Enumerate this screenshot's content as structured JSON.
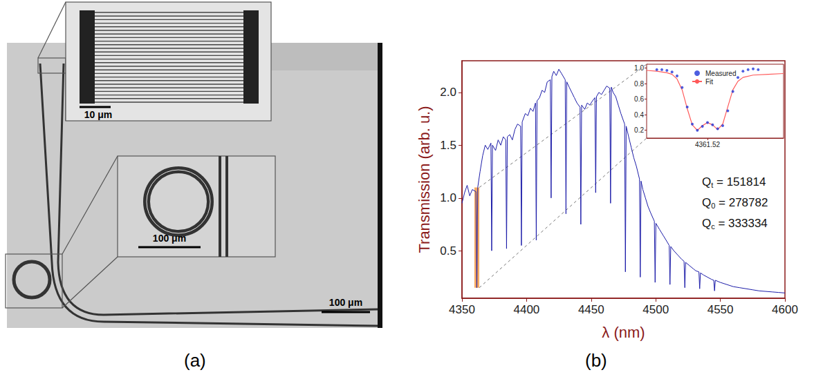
{
  "figure": {
    "panels": [
      {
        "label": "(a)",
        "scale_bars": [
          "10 μm",
          "100 μm",
          "100 μm"
        ]
      },
      {
        "label": "(b)"
      }
    ]
  },
  "chart_data": [
    {
      "type": "line",
      "xlabel": "λ (nm)",
      "ylabel": "Transmission (arb. u.)",
      "x": [
        4350,
        4352,
        4354,
        4356,
        4358,
        4360.8,
        4361.5,
        4362.2,
        4364,
        4366,
        4368,
        4370,
        4372.4,
        4373,
        4373.6,
        4376,
        4378,
        4380,
        4382,
        4383.9,
        4384.5,
        4385.1,
        4387,
        4389,
        4391,
        4393,
        4395.4,
        4396,
        4396.6,
        4399,
        4401,
        4403,
        4405,
        4406.9,
        4407.5,
        4408.1,
        4410,
        4412,
        4414,
        4416,
        4418.4,
        4419,
        4419.6,
        4421,
        4423,
        4425,
        4427,
        4429.9,
        4430.5,
        4431.1,
        4433,
        4435,
        4437,
        4439,
        4441.4,
        4442,
        4442.6,
        4445,
        4447,
        4449,
        4451,
        4452.9,
        4453.5,
        4454.1,
        4456,
        4458,
        4460,
        4462,
        4464.4,
        4465,
        4465.6,
        4467,
        4469,
        4471,
        4473,
        4475.9,
        4476.5,
        4477.1,
        4479,
        4481,
        4483,
        4485,
        4487.4,
        4488,
        4488.6,
        4490,
        4492,
        4494,
        4496,
        4498.9,
        4499.5,
        4500.1,
        4503,
        4506,
        4509,
        4510.4,
        4511,
        4511.6,
        4514,
        4517,
        4520,
        4521.9,
        4522.5,
        4523.1,
        4526,
        4529,
        4531,
        4533.4,
        4534,
        4534.6,
        4537,
        4540,
        4543,
        4544.9,
        4545.5,
        4546.1,
        4550,
        4555,
        4560,
        4565,
        4570,
        4575,
        4580,
        4585,
        4590,
        4595,
        4600
      ],
      "values": [
        0.95,
        1.05,
        1.12,
        1.02,
        1.08,
        1.06,
        0.15,
        1.1,
        1.25,
        1.4,
        1.5,
        1.46,
        1.52,
        0.5,
        1.5,
        1.45,
        1.55,
        1.5,
        1.58,
        1.55,
        0.52,
        1.58,
        1.6,
        1.55,
        1.65,
        1.7,
        1.68,
        0.55,
        1.72,
        1.8,
        1.78,
        1.85,
        1.82,
        1.9,
        0.6,
        1.92,
        1.95,
        2.02,
        2.0,
        2.1,
        2.12,
        1.0,
        2.15,
        2.2,
        2.16,
        2.22,
        2.18,
        2.12,
        0.85,
        2.1,
        2.05,
        2.0,
        1.95,
        1.9,
        1.86,
        0.75,
        1.88,
        1.84,
        1.9,
        1.88,
        1.92,
        1.95,
        1.05,
        1.96,
        2.0,
        1.98,
        2.02,
        2.06,
        2.04,
        0.95,
        2.05,
        2.0,
        1.96,
        1.88,
        1.8,
        1.7,
        0.3,
        1.68,
        1.58,
        1.48,
        1.38,
        1.3,
        1.18,
        0.25,
        1.16,
        1.08,
        1.0,
        0.92,
        0.86,
        0.78,
        0.2,
        0.76,
        0.7,
        0.64,
        0.58,
        0.55,
        0.18,
        0.54,
        0.5,
        0.46,
        0.42,
        0.4,
        0.15,
        0.39,
        0.36,
        0.33,
        0.31,
        0.3,
        0.14,
        0.29,
        0.27,
        0.25,
        0.23,
        0.22,
        0.12,
        0.22,
        0.2,
        0.18,
        0.16,
        0.15,
        0.14,
        0.13,
        0.12,
        0.115,
        0.11,
        0.105,
        0.1
      ],
      "color": "#1c1ca8",
      "xlim": [
        4350,
        4600
      ],
      "xticks": [
        4350,
        4400,
        4450,
        4500,
        4550,
        4600
      ],
      "ylim": [
        0.05,
        2.3
      ],
      "yticks": [
        0.5,
        {
          "value": 1,
          "label": "1.0"
        },
        1.5,
        {
          "value": 2,
          "label": "2.0"
        }
      ],
      "grid": false,
      "highlight": {
        "x": [
          4359.6,
          4363.4
        ],
        "y": [
          0.15,
          1.1
        ],
        "color": "#f4a052"
      },
      "annotations": [
        {
          "label": "Q",
          "subscript": "t",
          "relation": "=",
          "value": 151814
        },
        {
          "label": "Q",
          "subscript": "0",
          "relation": "=",
          "value": 278782
        },
        {
          "label": "Q",
          "subscript": "c",
          "relation": "=",
          "value": 333334
        }
      ]
    },
    {
      "type": "line",
      "series": [
        {
          "name": "Measured",
          "type": "scatter",
          "color": "#2036d8",
          "marker": "circle",
          "x": [
            4361.32,
            4361.34,
            4361.36,
            4361.38,
            4361.4,
            4361.42,
            4361.44,
            4361.46,
            4361.48,
            4361.5,
            4361.52,
            4361.54,
            4361.56,
            4361.58,
            4361.6,
            4361.62,
            4361.64,
            4361.66,
            4361.68,
            4361.7,
            4361.72
          ],
          "values": [
            0.98,
            0.98,
            0.97,
            0.95,
            0.9,
            0.75,
            0.5,
            0.28,
            0.2,
            0.25,
            0.3,
            0.27,
            0.22,
            0.26,
            0.45,
            0.7,
            0.88,
            0.96,
            0.98,
            0.99,
            0.98
          ]
        },
        {
          "name": "Fit",
          "type": "line",
          "color": "#ff5a5a",
          "line_style": "solid",
          "x": [
            4361.28,
            4361.32,
            4361.36,
            4361.38,
            4361.4,
            4361.42,
            4361.44,
            4361.46,
            4361.48,
            4361.5,
            4361.52,
            4361.54,
            4361.56,
            4361.58,
            4361.6,
            4361.62,
            4361.64,
            4361.66,
            4361.7,
            4361.76,
            4361.82
          ],
          "values": [
            0.97,
            0.96,
            0.94,
            0.92,
            0.86,
            0.72,
            0.48,
            0.27,
            0.2,
            0.26,
            0.3,
            0.27,
            0.21,
            0.28,
            0.5,
            0.72,
            0.83,
            0.88,
            0.91,
            0.92,
            0.93
          ]
        }
      ],
      "xlim": [
        4361.28,
        4361.82
      ],
      "xticks": [
        4361.52
      ],
      "ylim": [
        0.1,
        1.05
      ],
      "yticks": [
        0.2,
        0.4,
        0.6,
        0.8,
        {
          "value": 1,
          "label": "1.0"
        }
      ],
      "legend": "top",
      "grid": false
    }
  ]
}
